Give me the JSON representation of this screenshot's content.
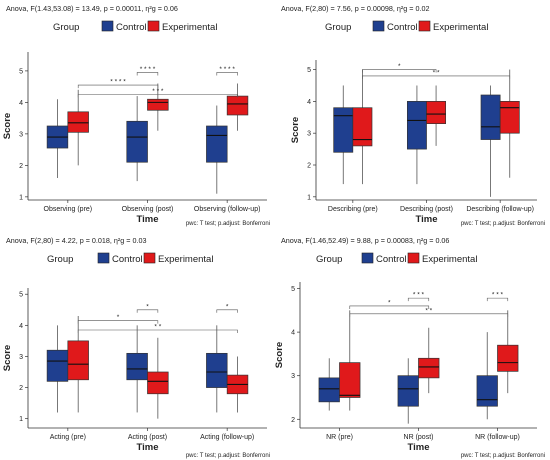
{
  "figure": {
    "legend_title": "Group",
    "legend_items": [
      {
        "name": "Control",
        "color": "#1f3f8f"
      },
      {
        "name": "Experimental",
        "color": "#e0191b"
      }
    ]
  },
  "chart_data": [
    {
      "type": "box",
      "anova_text": "Anova, F(1.43,53.08) = 13.49, p = 0.00011, η²g = 0.06",
      "caption_text": "pwc: T test; p.adjust: Bonferroni",
      "xlabel": "Time",
      "ylabel": "Score",
      "ylim": [
        0.9,
        5.6
      ],
      "yticks": [
        1,
        2,
        3,
        4,
        5
      ],
      "categories": [
        "Observing (pre)",
        "Observing (post)",
        "Observing (follow-up)"
      ],
      "legend_placement": "top",
      "series": [
        {
          "name": "Control",
          "boxes": [
            {
              "min": 1.6,
              "q1": 2.55,
              "median": 2.9,
              "q3": 3.25,
              "max": 4.1
            },
            {
              "min": 1.5,
              "q1": 2.1,
              "median": 2.9,
              "q3": 3.4,
              "max": 4.2
            },
            {
              "min": 1.1,
              "q1": 2.1,
              "median": 2.95,
              "q3": 3.25,
              "max": 3.9
            }
          ]
        },
        {
          "name": "Experimental",
          "boxes": [
            {
              "min": 2.0,
              "q1": 3.05,
              "median": 3.35,
              "q3": 3.7,
              "max": 4.4
            },
            {
              "min": 3.1,
              "q1": 3.75,
              "median": 4.0,
              "q3": 4.1,
              "max": 4.6
            },
            {
              "min": 3.1,
              "q1": 3.6,
              "median": 3.95,
              "q3": 4.2,
              "max": 4.6
            }
          ]
        }
      ],
      "significance": [
        {
          "label": "* * * *",
          "from_cat": 1,
          "from_series": 0,
          "to_cat": 1,
          "to_series": 1,
          "y": 4.95
        },
        {
          "label": "* * * *",
          "from_cat": 2,
          "from_series": 0,
          "to_cat": 2,
          "to_series": 1,
          "y": 4.95
        },
        {
          "label": "* * * *",
          "from_cat": 0,
          "from_series": 1,
          "to_cat": 1,
          "to_series": 1,
          "y": 4.55
        },
        {
          "label": "* * *",
          "from_cat": 0,
          "from_series": 1,
          "to_cat": 2,
          "to_series": 1,
          "y": 4.25
        }
      ]
    },
    {
      "type": "box",
      "anova_text": "Anova, F(2,80) = 7.56, p = 0.00098, η²g = 0.02",
      "caption_text": "pwc: T test; p.adjust: Bonferroni",
      "xlabel": "Time",
      "ylabel": "Score",
      "ylim": [
        0.9,
        5.3
      ],
      "yticks": [
        1,
        2,
        3,
        4,
        5
      ],
      "categories": [
        "Describing (pre)",
        "Describing (post)",
        "Describing (follow-up)"
      ],
      "legend_placement": "top",
      "series": [
        {
          "name": "Control",
          "boxes": [
            {
              "min": 1.4,
              "q1": 2.4,
              "median": 3.55,
              "q3": 3.8,
              "max": 4.5
            },
            {
              "min": 1.4,
              "q1": 2.5,
              "median": 3.4,
              "q3": 4.0,
              "max": 4.5
            },
            {
              "min": 1.0,
              "q1": 2.8,
              "median": 3.2,
              "q3": 4.2,
              "max": 4.5
            }
          ]
        },
        {
          "name": "Experimental",
          "boxes": [
            {
              "min": 1.4,
              "q1": 2.6,
              "median": 2.8,
              "q3": 3.8,
              "max": 5.0
            },
            {
              "min": 2.6,
              "q1": 3.3,
              "median": 3.6,
              "q3": 4.0,
              "max": 4.5
            },
            {
              "min": 1.6,
              "q1": 3.0,
              "median": 3.8,
              "q3": 4.0,
              "max": 5.0
            }
          ]
        }
      ],
      "significance": [
        {
          "label": "*",
          "from_cat": 0,
          "from_series": 1,
          "to_cat": 1,
          "to_series": 1,
          "y": 5.0
        },
        {
          "label": "* *",
          "from_cat": 0,
          "from_series": 1,
          "to_cat": 2,
          "to_series": 1,
          "y": 4.8
        }
      ]
    },
    {
      "type": "box",
      "anova_text": "Anova, F(2,80) = 4.22, p = 0.018, η²g = 0.03",
      "caption_text": "pwc: T test; p.adjust: Bonferroni",
      "xlabel": "Time",
      "ylabel": "Score",
      "ylim": [
        0.7,
        5.2
      ],
      "yticks": [
        1,
        2,
        3,
        4,
        5
      ],
      "categories": [
        "Acting (pre)",
        "Acting (post)",
        "Acting (follow-up)"
      ],
      "legend_placement": "top",
      "series": [
        {
          "name": "Control",
          "boxes": [
            {
              "min": 1.2,
              "q1": 2.2,
              "median": 2.85,
              "q3": 3.2,
              "max": 4.0
            },
            {
              "min": 1.2,
              "q1": 2.25,
              "median": 2.6,
              "q3": 3.1,
              "max": 4.0
            },
            {
              "min": 1.2,
              "q1": 2.0,
              "median": 2.5,
              "q3": 3.1,
              "max": 4.0
            }
          ]
        },
        {
          "name": "Experimental",
          "boxes": [
            {
              "min": 1.2,
              "q1": 2.25,
              "median": 2.75,
              "q3": 3.5,
              "max": 4.3
            },
            {
              "min": 1.0,
              "q1": 1.8,
              "median": 2.2,
              "q3": 2.5,
              "max": 3.6
            },
            {
              "min": 1.2,
              "q1": 1.8,
              "median": 2.1,
              "q3": 2.4,
              "max": 3.0
            }
          ]
        }
      ],
      "significance": [
        {
          "label": "*",
          "from_cat": 1,
          "from_series": 0,
          "to_cat": 1,
          "to_series": 1,
          "y": 4.5
        },
        {
          "label": "*",
          "from_cat": 2,
          "from_series": 0,
          "to_cat": 2,
          "to_series": 1,
          "y": 4.5
        },
        {
          "label": "*",
          "from_cat": 0,
          "from_series": 1,
          "to_cat": 1,
          "to_series": 1,
          "y": 4.15
        },
        {
          "label": "* *",
          "from_cat": 0,
          "from_series": 1,
          "to_cat": 2,
          "to_series": 1,
          "y": 3.85
        }
      ]
    },
    {
      "type": "box",
      "anova_text": "Anova, F(1.46,52.49) = 9.88, p = 0.00083, η²g = 0.06",
      "caption_text": "pwc: T test; p.adjust: Bonferroni",
      "xlabel": "Time",
      "ylabel": "Score",
      "ylim": [
        1.8,
        5.15
      ],
      "yticks": [
        2,
        3,
        4,
        5
      ],
      "categories": [
        "NR (pre)",
        "NR (post)",
        "NR (follow-up)"
      ],
      "legend_placement": "top",
      "series": [
        {
          "name": "Control",
          "boxes": [
            {
              "min": 2.2,
              "q1": 2.4,
              "median": 2.7,
              "q3": 2.95,
              "max": 3.4
            },
            {
              "min": 1.9,
              "q1": 2.3,
              "median": 2.7,
              "q3": 3.0,
              "max": 3.4
            },
            {
              "min": 2.0,
              "q1": 2.3,
              "median": 2.45,
              "q3": 3.0,
              "max": 4.0
            }
          ]
        },
        {
          "name": "Experimental",
          "boxes": [
            {
              "min": 2.2,
              "q1": 2.5,
              "median": 2.55,
              "q3": 3.3,
              "max": 4.5
            },
            {
              "min": 2.6,
              "q1": 2.95,
              "median": 3.2,
              "q3": 3.4,
              "max": 4.1
            },
            {
              "min": 2.6,
              "q1": 3.1,
              "median": 3.3,
              "q3": 3.7,
              "max": 4.5
            }
          ]
        }
      ],
      "significance": [
        {
          "label": "* * *",
          "from_cat": 1,
          "from_series": 0,
          "to_cat": 1,
          "to_series": 1,
          "y": 4.78
        },
        {
          "label": "* * *",
          "from_cat": 2,
          "from_series": 0,
          "to_cat": 2,
          "to_series": 1,
          "y": 4.78
        },
        {
          "label": "*",
          "from_cat": 0,
          "from_series": 1,
          "to_cat": 1,
          "to_series": 1,
          "y": 4.6
        },
        {
          "label": "* *",
          "from_cat": 0,
          "from_series": 1,
          "to_cat": 2,
          "to_series": 1,
          "y": 4.42
        }
      ]
    }
  ]
}
